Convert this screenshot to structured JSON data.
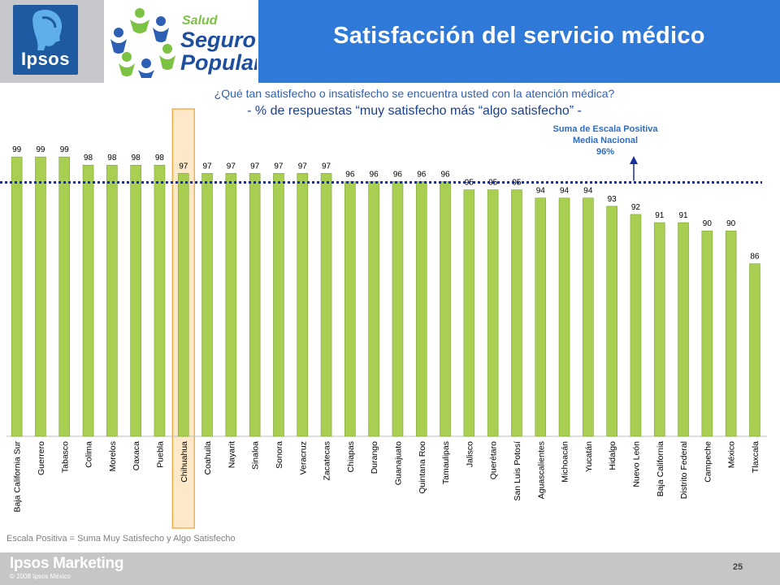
{
  "header": {
    "logo_text": "Ipsos",
    "brand_salud": "Salud",
    "brand_seguro": "Seguro",
    "brand_popular": "Popular",
    "title": "Satisfacción del servicio médico"
  },
  "question": "¿Qué tan satisfecho  o insatisfecho se encuentra usted con la atención médica?",
  "subquestion": "- % de respuestas “muy satisfecho más “algo satisfecho” -",
  "mean_note": {
    "line1": "Suma de Escala Positiva",
    "line2": "Media Nacional",
    "line3": "96%"
  },
  "footnote": "Escala Positiva = Suma Muy Satisfecho y Algo Satisfecho",
  "footer": {
    "brand": "Ipsos Marketing",
    "copyright": "© 2008 Ipsos México",
    "page": "25"
  },
  "colors": {
    "bar": "#a9cf52",
    "bar_edge": "#7fa33a",
    "highlight_fill": "#fde9c9",
    "highlight_edge": "#f0a030",
    "mean_line": "#1a2f9e",
    "title_band": "#2f7ad9"
  },
  "chart_data": {
    "type": "bar",
    "title": "",
    "xlabel": "",
    "ylabel": "",
    "categories": [
      "Baja California Sur",
      "Guerrero",
      "Tabasco",
      "Colima",
      "Morelos",
      "Oaxaca",
      "Puebla",
      "Chihuahua",
      "Coahuila",
      "Nayarit",
      "Sinaloa",
      "Sonora",
      "Veracruz",
      "Zacatecas",
      "Chiapas",
      "Durango",
      "Guanajuato",
      "Quintana Roo",
      "Tamaulipas",
      "Jalisco",
      "Querétaro",
      "San Luis Potosí",
      "Aguascalientes",
      "Michoacán",
      "Yucatán",
      "Hidalgo",
      "Nuevo León",
      "Baja California",
      "Distrito Federal",
      "Campeche",
      "México",
      "Tlaxcala"
    ],
    "values": [
      99,
      99,
      99,
      98,
      98,
      98,
      98,
      97,
      97,
      97,
      97,
      97,
      97,
      97,
      96,
      96,
      96,
      96,
      96,
      95,
      95,
      95,
      94,
      94,
      94,
      93,
      92,
      91,
      91,
      90,
      90,
      86
    ],
    "highlight": "Chihuahua",
    "reference_line": 96,
    "ylim": [
      65,
      100
    ],
    "grid": false,
    "legend": "none"
  }
}
